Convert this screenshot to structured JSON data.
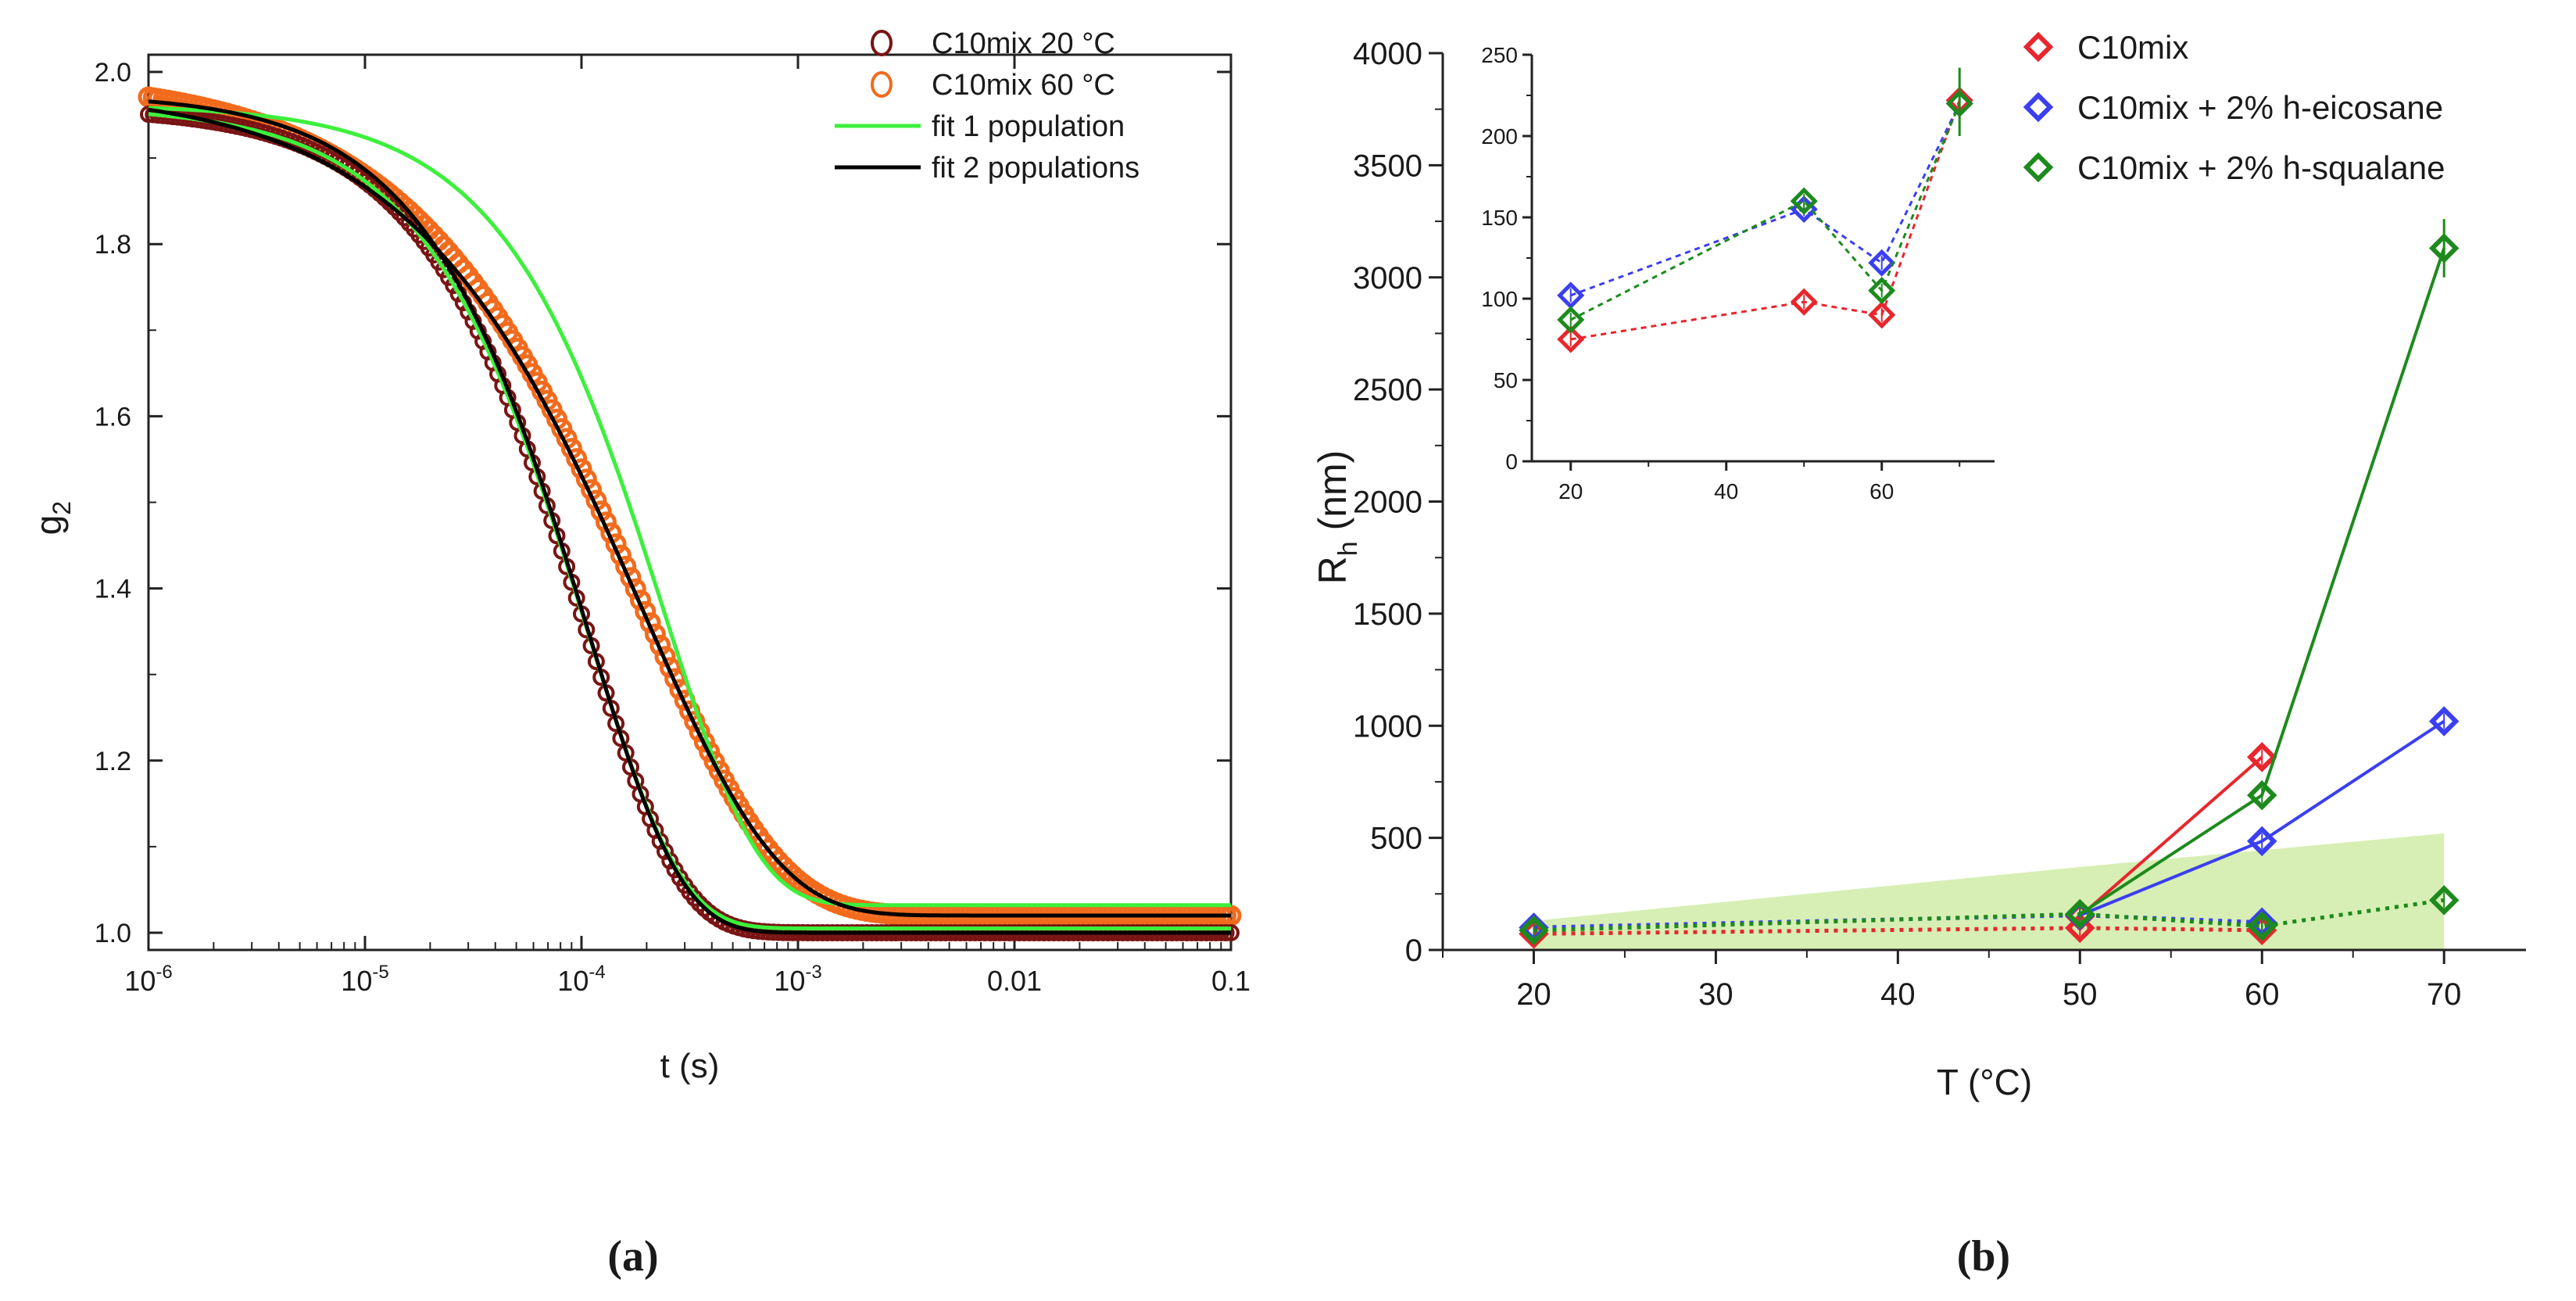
{
  "chart_data": [
    {
      "type": "line",
      "panel_label": "(a)",
      "xlabel": "t (s)",
      "ylabel": "g2",
      "xscale": "log",
      "xlim": [
        1e-06,
        0.1
      ],
      "ylim": [
        0.98,
        2.02
      ],
      "x_ticks": [
        {
          "value": 1e-06,
          "base": "10",
          "exp": "-6"
        },
        {
          "value": 1e-05,
          "base": "10",
          "exp": "-5"
        },
        {
          "value": 0.0001,
          "base": "10",
          "exp": "-4"
        },
        {
          "value": 0.001,
          "base": "10",
          "exp": "-3"
        },
        {
          "value": 0.01,
          "base": "0.01",
          "exp": ""
        },
        {
          "value": 0.1,
          "base": "0.1",
          "exp": ""
        }
      ],
      "y_ticks": [
        "1.0",
        "1.2",
        "1.4",
        "1.6",
        "1.8",
        "2.0"
      ],
      "legend_position": "top-right",
      "series": [
        {
          "name": "C10mix 20 °C",
          "kind": "markers",
          "color": "#7a1414",
          "baseline": 1.0,
          "beta": 0.96,
          "tau": 0.00021,
          "stretch": 1.0
        },
        {
          "name": "C10mix 60 °C",
          "kind": "markers",
          "color": "#f26b1d",
          "baseline": 1.02,
          "beta": 0.975,
          "tau": 0.00052,
          "stretch": 0.7
        },
        {
          "name": "fit 1 population",
          "kind": "line",
          "color": "#3cf03c",
          "curves": [
            {
              "baseline": 1.032,
              "beta": 0.93,
              "tau": 0.00048,
              "stretch": 1.0
            },
            {
              "baseline": 1.005,
              "beta": 0.955,
              "tau": 0.00021,
              "stretch": 1.0
            }
          ]
        },
        {
          "name": "fit 2 populations",
          "kind": "line",
          "color": "#000000",
          "curves": [
            {
              "baseline": 1.02,
              "beta": 0.96,
              "tau": 0.00052,
              "stretch": 0.7
            },
            {
              "baseline": 1.0,
              "beta": 0.975,
              "tau": 0.00021,
              "stretch": 1.0
            }
          ]
        }
      ]
    },
    {
      "type": "line",
      "panel_label": "(b)",
      "xlabel": "T (°C)",
      "ylabel_main": "R",
      "ylabel_sub": "h",
      "ylabel_unit": "(nm)",
      "xlim": [
        15,
        74.5
      ],
      "ylim": [
        0,
        4000
      ],
      "x_ticks": [
        20,
        30,
        40,
        50,
        60,
        70
      ],
      "y_ticks": [
        0,
        500,
        1000,
        1500,
        2000,
        2500,
        3000,
        3500,
        4000
      ],
      "legend_position": "top-right",
      "shaded_band": {
        "color": "#d7efb4",
        "points": [
          [
            20,
            0
          ],
          [
            20,
            130
          ],
          [
            50,
            370
          ],
          [
            70,
            520
          ],
          [
            70,
            0
          ]
        ]
      },
      "series": [
        {
          "name": "C10mix",
          "color": "#e8262d",
          "dotted": [
            [
              20,
              72
            ],
            [
              50,
              98
            ],
            [
              60,
              88
            ]
          ],
          "solid": [
            [
              50,
              150
            ],
            [
              60,
              860
            ]
          ]
        },
        {
          "name": "C10mix + 2% h-eicosane",
          "color": "#3b3ff0",
          "dotted": [
            [
              20,
              100
            ],
            [
              50,
              155
            ],
            [
              60,
              123
            ]
          ],
          "solid": [
            [
              50,
              155
            ],
            [
              60,
              485
            ],
            [
              70,
              1020
            ]
          ]
        },
        {
          "name": "C10mix + 2% h-squalane",
          "color": "#1d8a1d",
          "dotted": [
            [
              20,
              87
            ],
            [
              50,
              160
            ],
            [
              60,
              106
            ],
            [
              70,
              222
            ]
          ],
          "solid": [
            [
              50,
              160
            ],
            [
              60,
              690
            ],
            [
              70,
              3130
            ]
          ],
          "error_70": [
            3000,
            3260
          ]
        }
      ],
      "inset": {
        "xlim": [
          15,
          74.5
        ],
        "ylim": [
          0,
          250
        ],
        "x_ticks": [
          20,
          40,
          60
        ],
        "y_ticks": [
          0,
          50,
          100,
          150,
          200,
          250
        ],
        "series": [
          {
            "name": "C10mix",
            "color": "#e8262d",
            "points": [
              [
                20,
                75
              ],
              [
                50,
                98
              ],
              [
                60,
                90
              ],
              [
                70,
                222
              ]
            ]
          },
          {
            "name": "C10mix + 2% h-eicosane",
            "color": "#3b3ff0",
            "points": [
              [
                20,
                102
              ],
              [
                50,
                155
              ],
              [
                60,
                122
              ],
              [
                70,
                220
              ]
            ]
          },
          {
            "name": "C10mix + 2% h-squalane",
            "color": "#1d8a1d",
            "points": [
              [
                20,
                87
              ],
              [
                50,
                160
              ],
              [
                60,
                105
              ],
              [
                70,
                220
              ]
            ]
          }
        ]
      }
    }
  ]
}
